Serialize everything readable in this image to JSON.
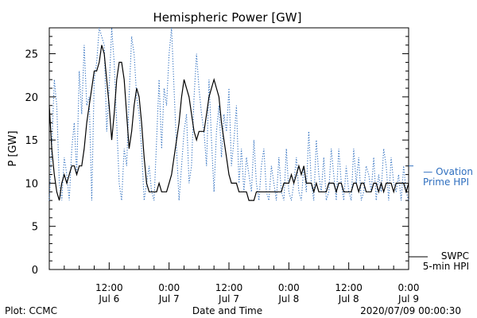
{
  "footer": {
    "plot_credit": "Plot: CCMC",
    "timestamp": "2020/07/09 00:00:30"
  },
  "chart_data": {
    "type": "line",
    "title": "Hemispheric Power [GW]",
    "xlabel": "Date and Time",
    "ylabel": "P [GW]",
    "xlim": [
      0,
      72
    ],
    "ylim": [
      0,
      28
    ],
    "grid": false,
    "y_ticks": [
      0,
      5,
      10,
      15,
      20,
      25
    ],
    "x_ticks": [
      {
        "x": 12,
        "line1": "12:00",
        "line2": "Jul 6"
      },
      {
        "x": 24,
        "line1": "0:00",
        "line2": "Jul 7"
      },
      {
        "x": 36,
        "line1": "12:00",
        "line2": "Jul 7"
      },
      {
        "x": 48,
        "line1": "0:00",
        "line2": "Jul 8"
      },
      {
        "x": 60,
        "line1": "12:00",
        "line2": "Jul 8"
      },
      {
        "x": 72,
        "line1": "0:00",
        "line2": "Jul 9"
      }
    ],
    "series": [
      {
        "name": "Ovation Prime HPI",
        "legend_lines": [
          "— Ovation",
          "Prime HPI"
        ],
        "color": "#2f6fbf",
        "style": "dotted",
        "x": [
          0,
          0.5,
          1,
          1.5,
          2,
          2.5,
          3,
          3.5,
          4,
          4.5,
          5,
          5.5,
          6,
          6.5,
          7,
          7.5,
          8,
          8.5,
          9,
          9.5,
          10,
          10.5,
          11,
          11.5,
          12,
          12.5,
          13,
          13.5,
          14,
          14.5,
          15,
          15.5,
          16,
          16.5,
          17,
          17.5,
          18,
          18.5,
          19,
          19.5,
          20,
          20.5,
          21,
          21.5,
          22,
          22.5,
          23,
          23.5,
          24,
          24.5,
          25,
          25.5,
          26,
          26.5,
          27,
          27.5,
          28,
          28.5,
          29,
          29.5,
          30,
          30.5,
          31,
          31.5,
          32,
          32.5,
          33,
          33.5,
          34,
          34.5,
          35,
          35.5,
          36,
          36.5,
          37,
          37.5,
          38,
          38.5,
          39,
          39.5,
          40,
          40.5,
          41,
          41.5,
          42,
          42.5,
          43,
          43.5,
          44,
          44.5,
          45,
          45.5,
          46,
          46.5,
          47,
          47.5,
          48,
          48.5,
          49,
          49.5,
          50,
          50.5,
          51,
          51.5,
          52,
          52.5,
          53,
          53.5,
          54,
          54.5,
          55,
          55.5,
          56,
          56.5,
          57,
          57.5,
          58,
          58.5,
          59,
          59.5,
          60,
          60.5,
          61,
          61.5,
          62,
          62.5,
          63,
          63.5,
          64,
          64.5,
          65,
          65.5,
          66,
          66.5,
          67,
          67.5,
          68,
          68.5,
          69,
          69.5,
          70,
          70.5,
          71,
          71.5,
          72
        ],
        "values": [
          8,
          14,
          22,
          19,
          10,
          8,
          13,
          11,
          8,
          14,
          17,
          11,
          23,
          18,
          26,
          19,
          20,
          8,
          22,
          24,
          28,
          27,
          26,
          16,
          21,
          28,
          24,
          17,
          10,
          8,
          14,
          12,
          20,
          27,
          25,
          20,
          18,
          14,
          8,
          10,
          12,
          9,
          8,
          15,
          22,
          14,
          21,
          19,
          25,
          28,
          21,
          14,
          8,
          12,
          16,
          18,
          10,
          12,
          20,
          25,
          21,
          18,
          16,
          12,
          22,
          15,
          9,
          16,
          19,
          13,
          18,
          16,
          21,
          12,
          15,
          19,
          10,
          14,
          9,
          13,
          11,
          9,
          15,
          10,
          8,
          12,
          14,
          9,
          8,
          12,
          10,
          8,
          13,
          9,
          8,
          14,
          9,
          8,
          10,
          13,
          9,
          8,
          12,
          9,
          16,
          10,
          8,
          15,
          11,
          9,
          13,
          8,
          9,
          14,
          11,
          8,
          14,
          10,
          8,
          12,
          9,
          8,
          14,
          10,
          13,
          8,
          9,
          12,
          11,
          9,
          13,
          8,
          11,
          9,
          14,
          12,
          8,
          13,
          10,
          9,
          11,
          8,
          12,
          9,
          8
        ]
      },
      {
        "name": "SWPC 5-min HPI",
        "legend_lines": [
          "SWPC",
          "5-min HPI"
        ],
        "color": "#000000",
        "style": "solid",
        "x": [
          0,
          0.5,
          1,
          1.5,
          2,
          2.5,
          3,
          3.5,
          4,
          4.5,
          5,
          5.5,
          6,
          6.5,
          7,
          7.5,
          8,
          8.5,
          9,
          9.5,
          10,
          10.5,
          11,
          11.5,
          12,
          12.5,
          13,
          13.5,
          14,
          14.5,
          15,
          15.5,
          16,
          16.5,
          17,
          17.5,
          18,
          18.5,
          19,
          19.5,
          20,
          20.5,
          21,
          21.5,
          22,
          22.5,
          23,
          23.5,
          24,
          24.5,
          25,
          25.5,
          26,
          26.5,
          27,
          27.5,
          28,
          28.5,
          29,
          29.5,
          30,
          30.5,
          31,
          31.5,
          32,
          32.5,
          33,
          33.5,
          34,
          34.5,
          35,
          35.5,
          36,
          36.5,
          37,
          37.5,
          38,
          38.5,
          39,
          39.5,
          40,
          40.5,
          41,
          41.5,
          42,
          42.5,
          43,
          43.5,
          44,
          44.5,
          45,
          45.5,
          46,
          46.5,
          47,
          47.5,
          48,
          48.5,
          49,
          49.5,
          50,
          50.5,
          51,
          51.5,
          52,
          52.5,
          53,
          53.5,
          54,
          54.5,
          55,
          55.5,
          56,
          56.5,
          57,
          57.5,
          58,
          58.5,
          59,
          59.5,
          60,
          60.5,
          61,
          61.5,
          62,
          62.5,
          63,
          63.5,
          64,
          64.5,
          65,
          65.5,
          66,
          66.5,
          67,
          67.5,
          68,
          68.5,
          69,
          69.5,
          70,
          70.5,
          71,
          71.5,
          72
        ],
        "values": [
          19,
          14,
          11,
          9,
          8,
          10,
          11,
          10,
          11,
          12,
          12,
          11,
          12,
          12,
          14,
          17,
          19,
          21,
          23,
          23,
          24,
          26,
          25,
          22,
          19,
          15,
          18,
          22,
          24,
          24,
          22,
          18,
          14,
          16,
          19,
          21,
          20,
          17,
          13,
          10,
          9,
          9,
          9,
          9,
          10,
          9,
          9,
          9,
          10,
          11,
          13,
          15,
          17,
          20,
          22,
          21,
          20,
          18,
          16,
          15,
          16,
          16,
          16,
          18,
          20,
          21,
          22,
          21,
          20,
          17,
          15,
          13,
          11,
          10,
          10,
          10,
          9,
          9,
          9,
          9,
          8,
          8,
          8,
          9,
          9,
          9,
          9,
          9,
          9,
          9,
          9,
          9,
          9,
          9,
          10,
          10,
          10,
          11,
          10,
          11,
          12,
          11,
          12,
          10,
          10,
          10,
          9,
          10,
          9,
          9,
          9,
          9,
          10,
          10,
          10,
          9,
          10,
          10,
          9,
          9,
          9,
          9,
          10,
          10,
          9,
          10,
          10,
          9,
          9,
          9,
          10,
          10,
          9,
          10,
          9,
          10,
          10,
          10,
          9,
          10,
          10,
          10,
          10,
          9,
          10
        ]
      }
    ]
  }
}
